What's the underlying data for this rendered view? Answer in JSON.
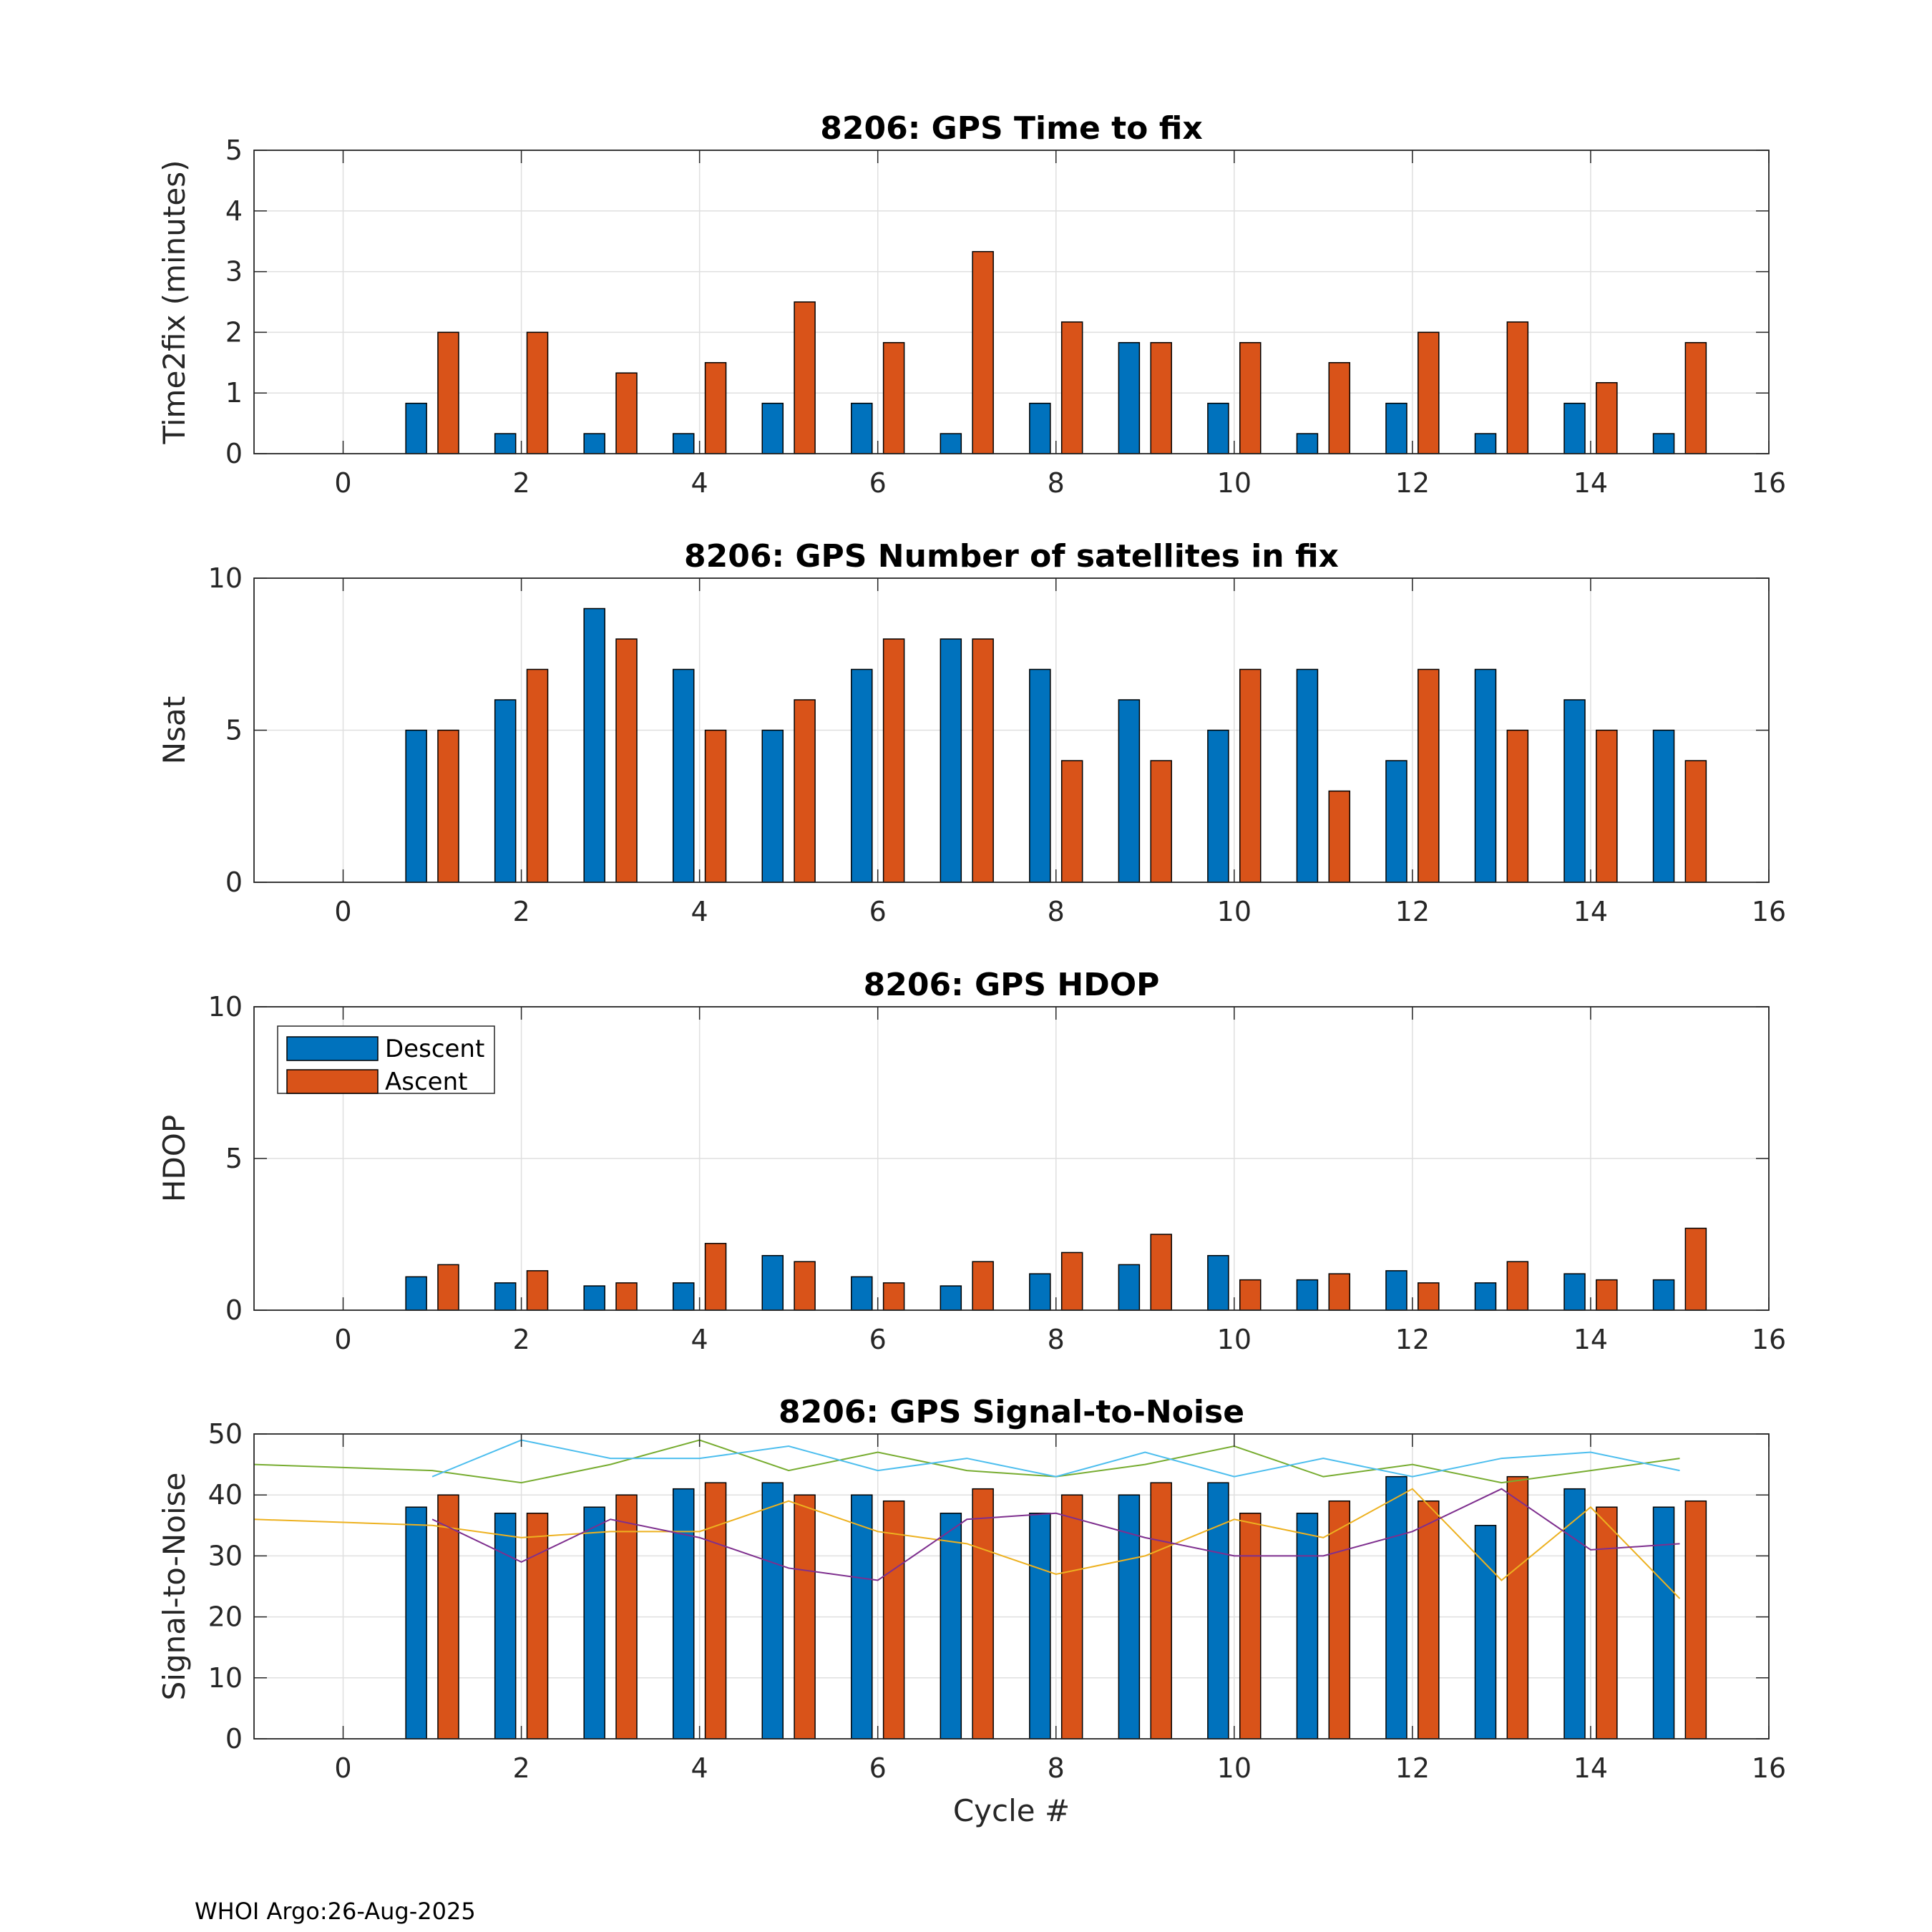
{
  "footer": "WHOI Argo:26-Aug-2025",
  "colors": {
    "descent": "#0072BD",
    "ascent": "#D95319",
    "sn_yellow": "#EDB120",
    "sn_purple": "#7E2F8E",
    "sn_green": "#77AC30",
    "sn_cyan": "#4DBEEE"
  },
  "chart_data": [
    {
      "type": "bar",
      "title": "8206: GPS Time to fix",
      "xlabel": "",
      "ylabel": "Time2fix (minutes)",
      "xlim": [
        -1,
        16
      ],
      "ylim": [
        0,
        5
      ],
      "xticks": [
        "0",
        "2",
        "4",
        "6",
        "8",
        "10",
        "12",
        "14",
        "16"
      ],
      "yticks": [
        "0",
        "1",
        "2",
        "3",
        "4",
        "5"
      ],
      "grid": true,
      "x": [
        1,
        2,
        3,
        4,
        5,
        6,
        7,
        8,
        9,
        10,
        11,
        12,
        13,
        14,
        15
      ],
      "series": [
        {
          "name": "Descent",
          "values": [
            0.83,
            0.33,
            0.33,
            0.33,
            0.83,
            0.83,
            0.33,
            0.83,
            1.83,
            0.83,
            0.33,
            0.83,
            0.33,
            0.83,
            0.33
          ]
        },
        {
          "name": "Ascent",
          "values": [
            2.0,
            2.0,
            1.33,
            1.5,
            2.5,
            1.83,
            3.33,
            2.17,
            1.83,
            1.83,
            1.5,
            2.0,
            2.17,
            1.17,
            1.83
          ]
        }
      ]
    },
    {
      "type": "bar",
      "title": "8206: GPS Number of satellites in fix",
      "xlabel": "",
      "ylabel": "Nsat",
      "xlim": [
        -1,
        16
      ],
      "ylim": [
        0,
        10
      ],
      "xticks": [
        "0",
        "2",
        "4",
        "6",
        "8",
        "10",
        "12",
        "14",
        "16"
      ],
      "yticks": [
        "0",
        "5",
        "10"
      ],
      "grid": true,
      "x": [
        1,
        2,
        3,
        4,
        5,
        6,
        7,
        8,
        9,
        10,
        11,
        12,
        13,
        14,
        15
      ],
      "series": [
        {
          "name": "Descent",
          "values": [
            5,
            6,
            9,
            7,
            5,
            7,
            8,
            7,
            6,
            5,
            7,
            4,
            7,
            6,
            5
          ]
        },
        {
          "name": "Ascent",
          "values": [
            5,
            7,
            8,
            5,
            6,
            8,
            8,
            4,
            4,
            7,
            3,
            7,
            5,
            5,
            4
          ]
        }
      ]
    },
    {
      "type": "bar",
      "title": "8206: GPS HDOP",
      "xlabel": "",
      "ylabel": "HDOP",
      "xlim": [
        -1,
        16
      ],
      "ylim": [
        0,
        10
      ],
      "xticks": [
        "0",
        "2",
        "4",
        "6",
        "8",
        "10",
        "12",
        "14",
        "16"
      ],
      "yticks": [
        "0",
        "5",
        "10"
      ],
      "grid": true,
      "legend": {
        "placement": "top-left",
        "entries": [
          "Descent",
          "Ascent"
        ]
      },
      "x": [
        1,
        2,
        3,
        4,
        5,
        6,
        7,
        8,
        9,
        10,
        11,
        12,
        13,
        14,
        15
      ],
      "series": [
        {
          "name": "Descent",
          "values": [
            1.1,
            0.9,
            0.8,
            0.9,
            1.8,
            1.1,
            0.8,
            1.2,
            1.5,
            1.8,
            1.0,
            1.3,
            0.9,
            1.2,
            1.0
          ]
        },
        {
          "name": "Ascent",
          "values": [
            1.5,
            1.3,
            0.9,
            2.2,
            1.6,
            0.9,
            1.6,
            1.9,
            2.5,
            1.0,
            1.2,
            0.9,
            1.6,
            1.0,
            2.7
          ]
        }
      ]
    },
    {
      "type": "bar",
      "title": "8206: GPS Signal-to-Noise",
      "xlabel": "Cycle #",
      "ylabel": "Signal-to-Noise",
      "xlim": [
        -1,
        16
      ],
      "ylim": [
        0,
        50
      ],
      "xticks": [
        "0",
        "2",
        "4",
        "6",
        "8",
        "10",
        "12",
        "14",
        "16"
      ],
      "yticks": [
        "0",
        "10",
        "20",
        "30",
        "40",
        "50"
      ],
      "grid": true,
      "x": [
        1,
        2,
        3,
        4,
        5,
        6,
        7,
        8,
        9,
        10,
        11,
        12,
        13,
        14,
        15
      ],
      "series": [
        {
          "name": "Descent",
          "values": [
            38,
            37,
            38,
            41,
            42,
            40,
            37,
            37,
            40,
            42,
            37,
            43,
            35,
            41,
            38
          ]
        },
        {
          "name": "Ascent",
          "values": [
            40,
            37,
            40,
            42,
            40,
            39,
            41,
            40,
            42,
            37,
            39,
            39,
            43,
            38,
            39
          ]
        }
      ],
      "lines": [
        {
          "color_key": "sn_green",
          "x": [
            -1,
            1,
            2,
            3,
            4,
            5,
            6,
            7,
            8,
            9,
            10,
            11,
            12,
            13,
            14,
            15
          ],
          "values": [
            45,
            44,
            42,
            45,
            49,
            44,
            47,
            44,
            43,
            45,
            48,
            43,
            45,
            42,
            44,
            46
          ]
        },
        {
          "color_key": "sn_cyan",
          "x": [
            1,
            2,
            3,
            4,
            5,
            6,
            7,
            8,
            9,
            10,
            11,
            12,
            13,
            14,
            15
          ],
          "values": [
            43,
            49,
            46,
            46,
            48,
            44,
            46,
            43,
            47,
            43,
            46,
            43,
            46,
            47,
            44
          ]
        },
        {
          "color_key": "sn_yellow",
          "x": [
            -1,
            1,
            2,
            3,
            4,
            5,
            6,
            7,
            8,
            9,
            10,
            11,
            12,
            13,
            14,
            15
          ],
          "values": [
            36,
            35,
            33,
            34,
            34,
            39,
            34,
            32,
            27,
            30,
            36,
            33,
            41,
            26,
            38,
            23
          ]
        },
        {
          "color_key": "sn_purple",
          "x": [
            1,
            2,
            3,
            4,
            5,
            6,
            7,
            8,
            9,
            10,
            11,
            12,
            13,
            14,
            15
          ],
          "values": [
            36,
            29,
            36,
            33,
            28,
            26,
            36,
            37,
            33,
            30,
            30,
            34,
            41,
            31,
            32
          ]
        }
      ]
    }
  ]
}
